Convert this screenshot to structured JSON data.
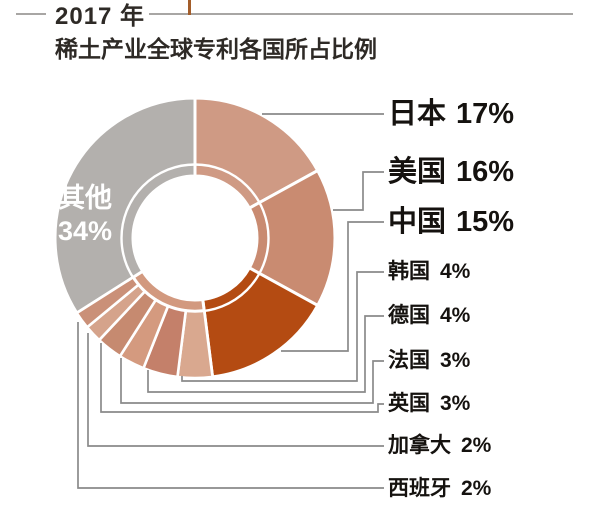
{
  "header": {
    "title_line1": "2017 年",
    "title_line2": "稀土产业全球专利各国所占比例"
  },
  "chart_data": {
    "type": "pie",
    "subtype": "donut",
    "title": "2017 年 稀土产业全球专利各国所占比例",
    "unit": "%",
    "start_angle": "top",
    "direction": "clockwise",
    "legend_position": "right",
    "small_group_color": "#d2997f",
    "slices": [
      {
        "id": "japan",
        "label": "日本",
        "value": 17,
        "display": "17%",
        "color": "#cf9a84"
      },
      {
        "id": "usa",
        "label": "美国",
        "value": 16,
        "display": "16%",
        "color": "#c98b71"
      },
      {
        "id": "china",
        "label": "中国",
        "value": 15,
        "display": "15%",
        "color": "#b44b12"
      },
      {
        "id": "korea",
        "label": "韩国",
        "value": 4,
        "display": "4%",
        "color": "#d9a88f"
      },
      {
        "id": "germany",
        "label": "德国",
        "value": 4,
        "display": "4%",
        "color": "#c4806a"
      },
      {
        "id": "france",
        "label": "法国",
        "value": 3,
        "display": "3%",
        "color": "#d49a7f"
      },
      {
        "id": "uk",
        "label": "英国",
        "value": 3,
        "display": "3%",
        "color": "#c68a70"
      },
      {
        "id": "canada",
        "label": "加拿大",
        "value": 2,
        "display": "2%",
        "color": "#d5a38b"
      },
      {
        "id": "spain",
        "label": "西班牙",
        "value": 2,
        "display": "2%",
        "color": "#ca9078"
      },
      {
        "id": "others",
        "label": "其他",
        "value": 34,
        "display": "34%",
        "color": "#b3b0ad"
      }
    ]
  },
  "colors": {
    "leader_line": "#8a8a8a",
    "rule_gray": "#a8a6a4",
    "tick_brown": "#a35d2a",
    "text_dark": "#15120f",
    "others_text": "#ffffff"
  }
}
